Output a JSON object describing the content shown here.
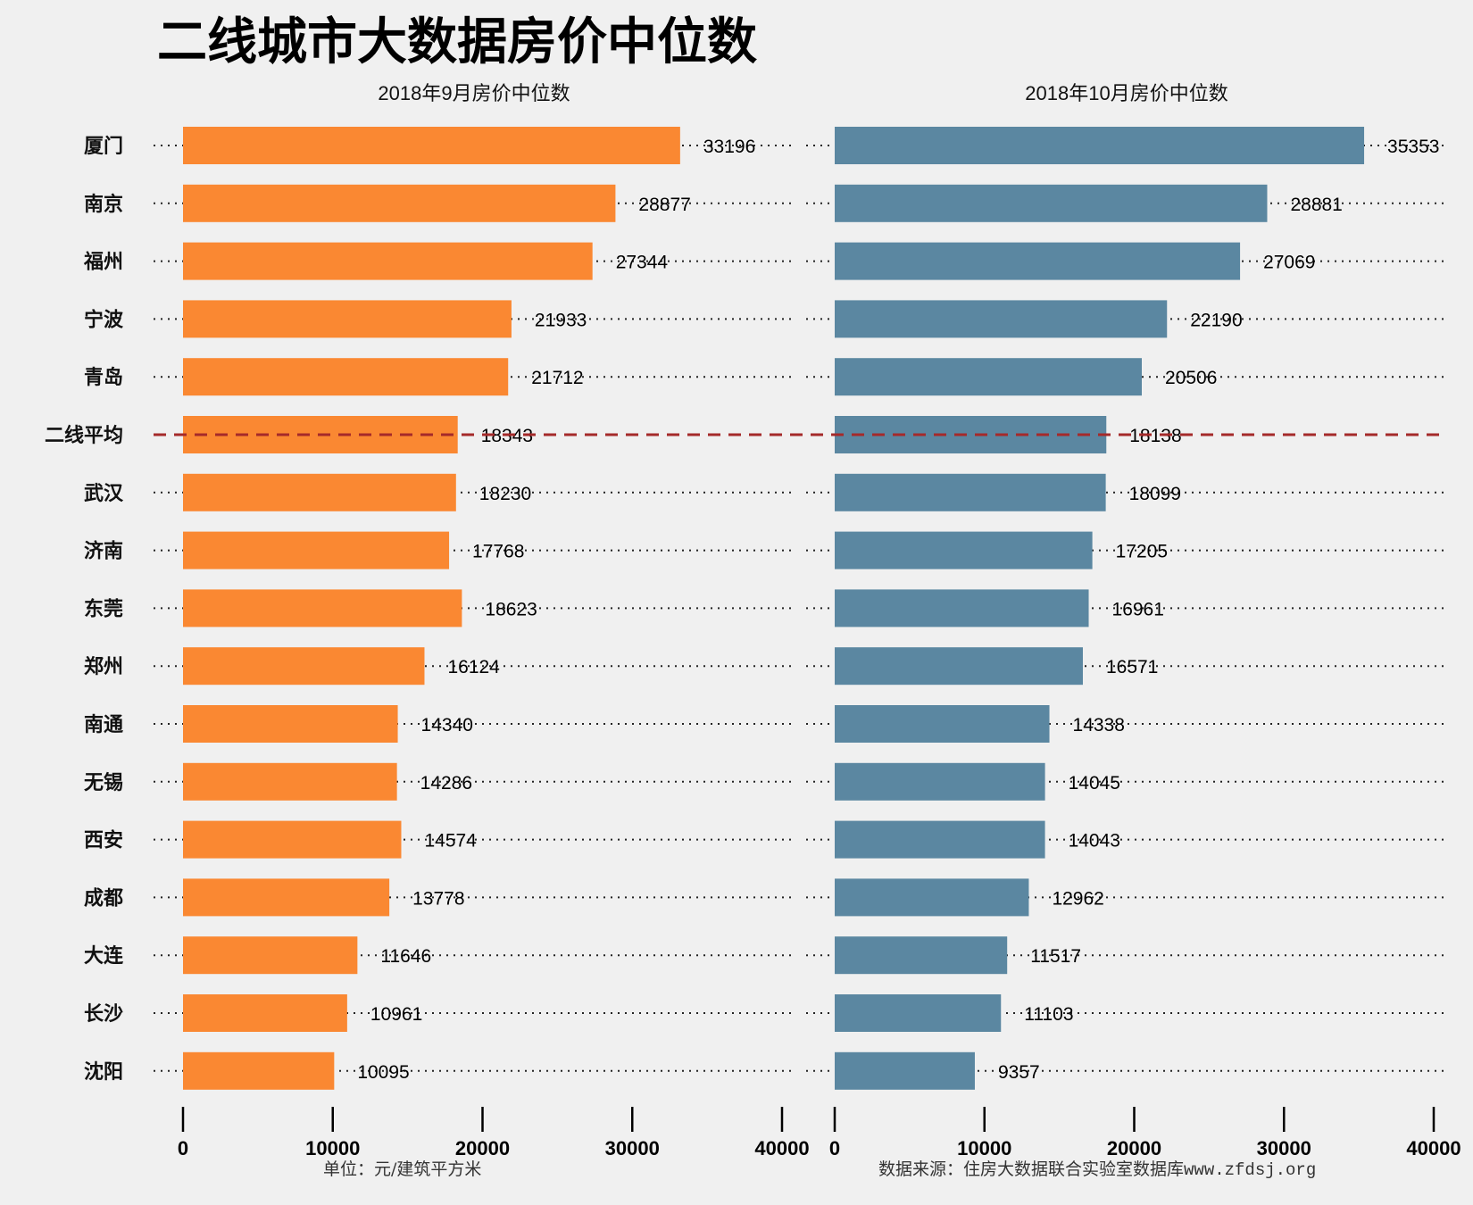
{
  "chart_data": [
    {
      "type": "bar",
      "orientation": "horizontal",
      "title": "2018年9月房价中位数",
      "categories": [
        "厦门",
        "南京",
        "福州",
        "宁波",
        "青岛",
        "二线平均",
        "武汉",
        "济南",
        "东莞",
        "郑州",
        "南通",
        "无锡",
        "西安",
        "成都",
        "大连",
        "长沙",
        "沈阳"
      ],
      "values": [
        33196,
        28877,
        27344,
        21933,
        21712,
        18343,
        18230,
        17768,
        18623,
        16124,
        14340,
        14286,
        14574,
        13778,
        11646,
        10961,
        10095
      ],
      "xlim": [
        0,
        40000
      ],
      "ticks": [
        0,
        10000,
        20000,
        30000,
        40000
      ],
      "color": "#fa8832",
      "reference_line": {
        "category": "二线平均",
        "color": "#a52a2a",
        "style": "dashed"
      }
    },
    {
      "type": "bar",
      "orientation": "horizontal",
      "title": "2018年10月房价中位数",
      "categories": [
        "厦门",
        "南京",
        "福州",
        "宁波",
        "青岛",
        "二线平均",
        "武汉",
        "济南",
        "东莞",
        "郑州",
        "南通",
        "无锡",
        "西安",
        "成都",
        "大连",
        "长沙",
        "沈阳"
      ],
      "values": [
        35353,
        28881,
        27069,
        22190,
        20506,
        18138,
        18099,
        17205,
        16961,
        16571,
        14338,
        14045,
        14043,
        12962,
        11517,
        11103,
        9357
      ],
      "xlim": [
        0,
        40000
      ],
      "ticks": [
        0,
        10000,
        20000,
        30000,
        40000
      ],
      "color": "#5b87a1",
      "reference_line": {
        "category": "二线平均",
        "color": "#a52a2a",
        "style": "dashed"
      }
    }
  ],
  "header": {
    "title": "二线城市大数据房价中位数"
  },
  "footer": {
    "unit": "单位：元/建筑平方米",
    "source": "数据来源：住房大数据联合实验室数据库",
    "url": "www.zfdsj.org"
  }
}
